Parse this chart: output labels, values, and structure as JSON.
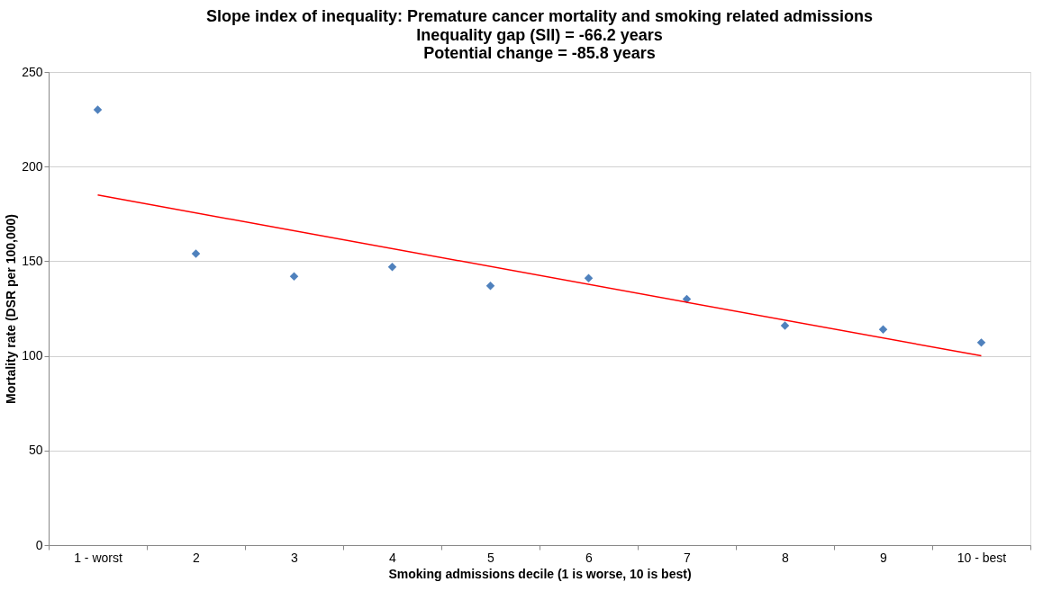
{
  "chart_data": {
    "type": "scatter",
    "title": "Slope index of inequality: Premature cancer mortality and smoking related admissions",
    "subtitle": "Inequality gap (SII) = -66.2 years\nPotential change = -85.8 years",
    "xlabel": "Smoking admissions decile (1 is worse, 10 is best)",
    "ylabel": "Mortality rate (DSR per 100,000)",
    "categories": [
      "1 - worst",
      "2",
      "3",
      "4",
      "5",
      "6",
      "7",
      "8",
      "9",
      "10 - best"
    ],
    "series": [
      {
        "color": "#4f81bd",
        "marker": "diamond",
        "values": [
          230,
          154,
          142,
          147,
          137,
          141,
          130,
          116,
          114,
          107
        ]
      },
      {
        "type": "line",
        "color": "#ff0000",
        "marker": "none",
        "x": [
          "1 - worst",
          "10 - best"
        ],
        "values": [
          185,
          100
        ]
      }
    ],
    "ylim": [
      0,
      250
    ],
    "yticks": [
      0,
      50,
      100,
      150,
      200,
      250
    ],
    "grid": "y"
  }
}
